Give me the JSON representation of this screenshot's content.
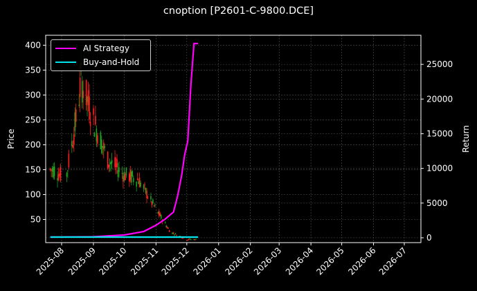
{
  "chart_data": {
    "type": "line",
    "title": "cnoption [P2601-C-9800.DCE]",
    "xlabel": "",
    "ylabel": "Price",
    "y2label": "Return",
    "ylim": [
      3.5,
      420
    ],
    "y2lim": [
      -700,
      29200
    ],
    "xticks": [
      "2025-08",
      "2025-09",
      "2025-10",
      "2025-11",
      "2025-12",
      "2026-01",
      "2026-02",
      "2026-03",
      "2026-04",
      "2026-05",
      "2026-06",
      "2026-07"
    ],
    "yticks": [
      50,
      100,
      150,
      200,
      250,
      300,
      350,
      400
    ],
    "y2ticks": [
      0,
      5000,
      10000,
      15000,
      20000,
      25000
    ],
    "grid": true,
    "legend_position": "upper left",
    "series": [
      {
        "name": "AI Strategy",
        "axis": "right",
        "color": "#ff00ff",
        "x": [
          "2025-07-21",
          "2025-09-01",
          "2025-10-01",
          "2025-10-20",
          "2025-11-01",
          "2025-11-10",
          "2025-11-18",
          "2025-11-22",
          "2025-11-26",
          "2025-11-29",
          "2025-12-02",
          "2025-12-05",
          "2025-12-08",
          "2025-12-12"
        ],
        "values": [
          100,
          150,
          400,
          900,
          1800,
          2700,
          3700,
          6000,
          9000,
          12000,
          14000,
          22000,
          28000,
          28000
        ]
      },
      {
        "name": "Buy-and-Hold",
        "axis": "right",
        "color": "#00e5ee",
        "x": [
          "2025-07-21",
          "2025-12-12"
        ],
        "values": [
          100,
          100
        ]
      },
      {
        "name": "Price (candlestick)",
        "axis": "left",
        "type": "candlestick",
        "up_color": "#ff2020",
        "down_color": "#20a020",
        "approx_close": {
          "2025-07-25": 150,
          "2025-08-05": 130,
          "2025-08-15": 250,
          "2025-08-20": 330,
          "2025-09-01": 250,
          "2025-09-15": 170,
          "2025-10-01": 140,
          "2025-10-15": 130,
          "2025-11-01": 70,
          "2025-11-15": 25,
          "2025-12-01": 10
        }
      }
    ]
  },
  "legend": {
    "items": [
      {
        "label": "AI Strategy",
        "color": "#ff00ff"
      },
      {
        "label": "Buy-and-Hold",
        "color": "#00e5ee"
      }
    ]
  }
}
